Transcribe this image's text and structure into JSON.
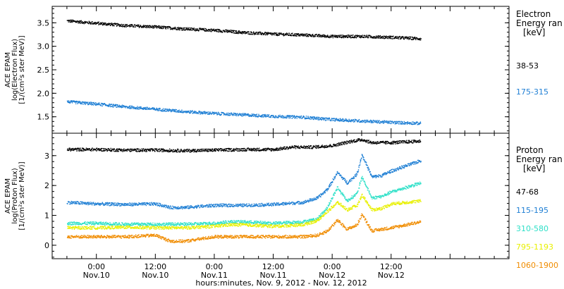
{
  "chart_data": [
    {
      "type": "scatter",
      "ylabel_lines": [
        "ACE EPAM",
        "log(Electron Flux)",
        "[1/(cm²s ster MeV)]"
      ],
      "yticks": [
        "1.5",
        "2.0",
        "2.5",
        "3.0",
        "3.5"
      ],
      "ylim": [
        1.15,
        3.85
      ],
      "xlim": [
        -9,
        84
      ],
      "legend_title": [
        "Electron",
        "Energy ran",
        "[keV]"
      ],
      "legend_placement": "right",
      "series": [
        {
          "name": "38-53",
          "color": "#000000",
          "values": [
            [
              -6,
              3.55
            ],
            [
              0,
              3.5
            ],
            [
              6,
              3.45
            ],
            [
              12,
              3.42
            ],
            [
              18,
              3.38
            ],
            [
              24,
              3.35
            ],
            [
              30,
              3.3
            ],
            [
              36,
              3.27
            ],
            [
              42,
              3.25
            ],
            [
              48,
              3.22
            ],
            [
              54,
              3.22
            ],
            [
              60,
              3.2
            ],
            [
              66,
              3.17
            ]
          ]
        },
        {
          "name": "175-315",
          "color": "#1f7fd4",
          "values": [
            [
              -6,
              1.83
            ],
            [
              0,
              1.78
            ],
            [
              6,
              1.72
            ],
            [
              12,
              1.67
            ],
            [
              18,
              1.62
            ],
            [
              24,
              1.58
            ],
            [
              30,
              1.55
            ],
            [
              36,
              1.52
            ],
            [
              42,
              1.5
            ],
            [
              48,
              1.45
            ],
            [
              54,
              1.42
            ],
            [
              60,
              1.39
            ],
            [
              66,
              1.37
            ]
          ]
        }
      ]
    },
    {
      "type": "scatter",
      "ylabel_lines": [
        "ACE EPAM",
        "log(Proton Flux)",
        "[1/(cm²s ster MeV)]"
      ],
      "yticks": [
        "0",
        "1",
        "2",
        "3"
      ],
      "ylim": [
        -0.45,
        3.75
      ],
      "xlim": [
        -9,
        84
      ],
      "legend_title": [
        "Proton",
        "Energy ran",
        "[keV]"
      ],
      "legend_placement": "right",
      "series": [
        {
          "name": "47-68",
          "color": "#000000",
          "values": [
            [
              -6,
              3.22
            ],
            [
              0,
              3.22
            ],
            [
              6,
              3.2
            ],
            [
              12,
              3.2
            ],
            [
              18,
              3.18
            ],
            [
              24,
              3.2
            ],
            [
              30,
              3.22
            ],
            [
              36,
              3.22
            ],
            [
              40,
              3.3
            ],
            [
              44,
              3.3
            ],
            [
              48,
              3.35
            ],
            [
              52,
              3.5
            ],
            [
              54,
              3.55
            ],
            [
              56,
              3.45
            ],
            [
              60,
              3.45
            ],
            [
              66,
              3.5
            ]
          ]
        },
        {
          "name": "115-195",
          "color": "#1f7fd4",
          "values": [
            [
              -6,
              1.45
            ],
            [
              0,
              1.4
            ],
            [
              6,
              1.38
            ],
            [
              12,
              1.4
            ],
            [
              15,
              1.28
            ],
            [
              18,
              1.28
            ],
            [
              24,
              1.35
            ],
            [
              30,
              1.35
            ],
            [
              36,
              1.38
            ],
            [
              42,
              1.45
            ],
            [
              45,
              1.6
            ],
            [
              47,
              1.9
            ],
            [
              49,
              2.45
            ],
            [
              51,
              2.1
            ],
            [
              53,
              2.4
            ],
            [
              54,
              3.05
            ],
            [
              56,
              2.3
            ],
            [
              58,
              2.35
            ],
            [
              60,
              2.5
            ],
            [
              66,
              2.85
            ]
          ]
        },
        {
          "name": "310-580",
          "color": "#2fe0c8",
          "values": [
            [
              -6,
              0.75
            ],
            [
              0,
              0.75
            ],
            [
              6,
              0.72
            ],
            [
              12,
              0.72
            ],
            [
              18,
              0.72
            ],
            [
              24,
              0.75
            ],
            [
              27,
              0.8
            ],
            [
              30,
              0.8
            ],
            [
              36,
              0.75
            ],
            [
              42,
              0.8
            ],
            [
              45,
              0.9
            ],
            [
              47,
              1.3
            ],
            [
              49,
              1.95
            ],
            [
              51,
              1.5
            ],
            [
              53,
              1.75
            ],
            [
              54,
              2.3
            ],
            [
              56,
              1.6
            ],
            [
              58,
              1.65
            ],
            [
              60,
              1.8
            ],
            [
              66,
              2.1
            ]
          ]
        },
        {
          "name": "795-1193",
          "color": "#e8f000",
          "values": [
            [
              -6,
              0.6
            ],
            [
              0,
              0.6
            ],
            [
              6,
              0.62
            ],
            [
              12,
              0.6
            ],
            [
              18,
              0.6
            ],
            [
              24,
              0.65
            ],
            [
              27,
              0.7
            ],
            [
              30,
              0.7
            ],
            [
              36,
              0.65
            ],
            [
              42,
              0.7
            ],
            [
              45,
              0.85
            ],
            [
              47,
              1.15
            ],
            [
              49,
              1.45
            ],
            [
              51,
              1.2
            ],
            [
              53,
              1.35
            ],
            [
              54,
              1.7
            ],
            [
              56,
              1.2
            ],
            [
              58,
              1.25
            ],
            [
              60,
              1.4
            ],
            [
              66,
              1.5
            ]
          ]
        },
        {
          "name": "1060-1900",
          "color": "#f08c00",
          "values": [
            [
              -6,
              0.3
            ],
            [
              0,
              0.3
            ],
            [
              6,
              0.3
            ],
            [
              12,
              0.35
            ],
            [
              15,
              0.15
            ],
            [
              18,
              0.15
            ],
            [
              24,
              0.3
            ],
            [
              30,
              0.3
            ],
            [
              36,
              0.3
            ],
            [
              42,
              0.3
            ],
            [
              45,
              0.35
            ],
            [
              47,
              0.5
            ],
            [
              49,
              0.85
            ],
            [
              51,
              0.55
            ],
            [
              53,
              0.7
            ],
            [
              54,
              1.05
            ],
            [
              56,
              0.5
            ],
            [
              58,
              0.55
            ],
            [
              60,
              0.6
            ],
            [
              66,
              0.8
            ]
          ]
        }
      ]
    }
  ],
  "x_axis": {
    "ticks": [
      {
        "t": 0,
        "time": "0:00",
        "date": "Nov.10"
      },
      {
        "t": 12,
        "time": "12:00",
        "date": "Nov.10"
      },
      {
        "t": 24,
        "time": "0:00",
        "date": "Nov.11"
      },
      {
        "t": 36,
        "time": "12:00",
        "date": "Nov.11"
      },
      {
        "t": 48,
        "time": "0:00",
        "date": "Nov.12"
      },
      {
        "t": 60,
        "time": "12:00",
        "date": "Nov.12"
      }
    ],
    "unit_note": "t = hours since 0:00 Nov.10, 2012",
    "label": "hours:minutes, Nov.  9, 2012 - Nov. 12, 2012"
  }
}
